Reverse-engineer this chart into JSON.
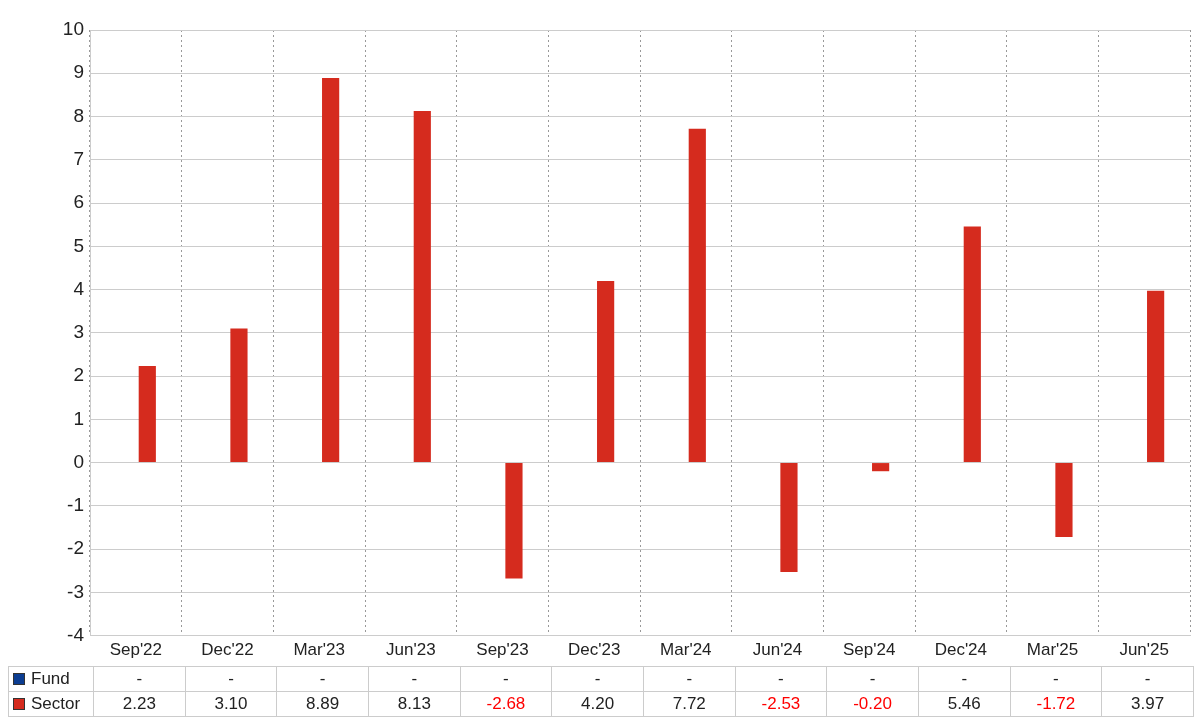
{
  "chart_data": {
    "type": "bar",
    "categories": [
      "Sep'22",
      "Dec'22",
      "Mar'23",
      "Jun'23",
      "Sep'23",
      "Dec'23",
      "Mar'24",
      "Jun'24",
      "Sep'24",
      "Dec'24",
      "Mar'25",
      "Jun'25"
    ],
    "series": [
      {
        "name": "Fund",
        "color": "#0b3d91",
        "values": [
          null,
          null,
          null,
          null,
          null,
          null,
          null,
          null,
          null,
          null,
          null,
          null
        ],
        "value_labels": [
          "-",
          "-",
          "-",
          "-",
          "-",
          "-",
          "-",
          "-",
          "-",
          "-",
          "-",
          "-"
        ]
      },
      {
        "name": "Sector",
        "color": "#d52b1e",
        "values": [
          2.23,
          3.1,
          8.89,
          8.13,
          -2.68,
          4.2,
          7.72,
          -2.53,
          -0.2,
          5.46,
          -1.72,
          3.97
        ],
        "value_labels": [
          "2.23",
          "3.10",
          "8.89",
          "8.13",
          "-2.68",
          "4.20",
          "7.72",
          "-2.53",
          "-0.20",
          "5.46",
          "-1.72",
          "3.97"
        ]
      }
    ],
    "ylim": [
      -4,
      10
    ],
    "yticks": [
      -4,
      -3,
      -2,
      -1,
      0,
      1,
      2,
      3,
      4,
      5,
      6,
      7,
      8,
      9,
      10
    ],
    "grid": true,
    "legend": "bottom"
  }
}
